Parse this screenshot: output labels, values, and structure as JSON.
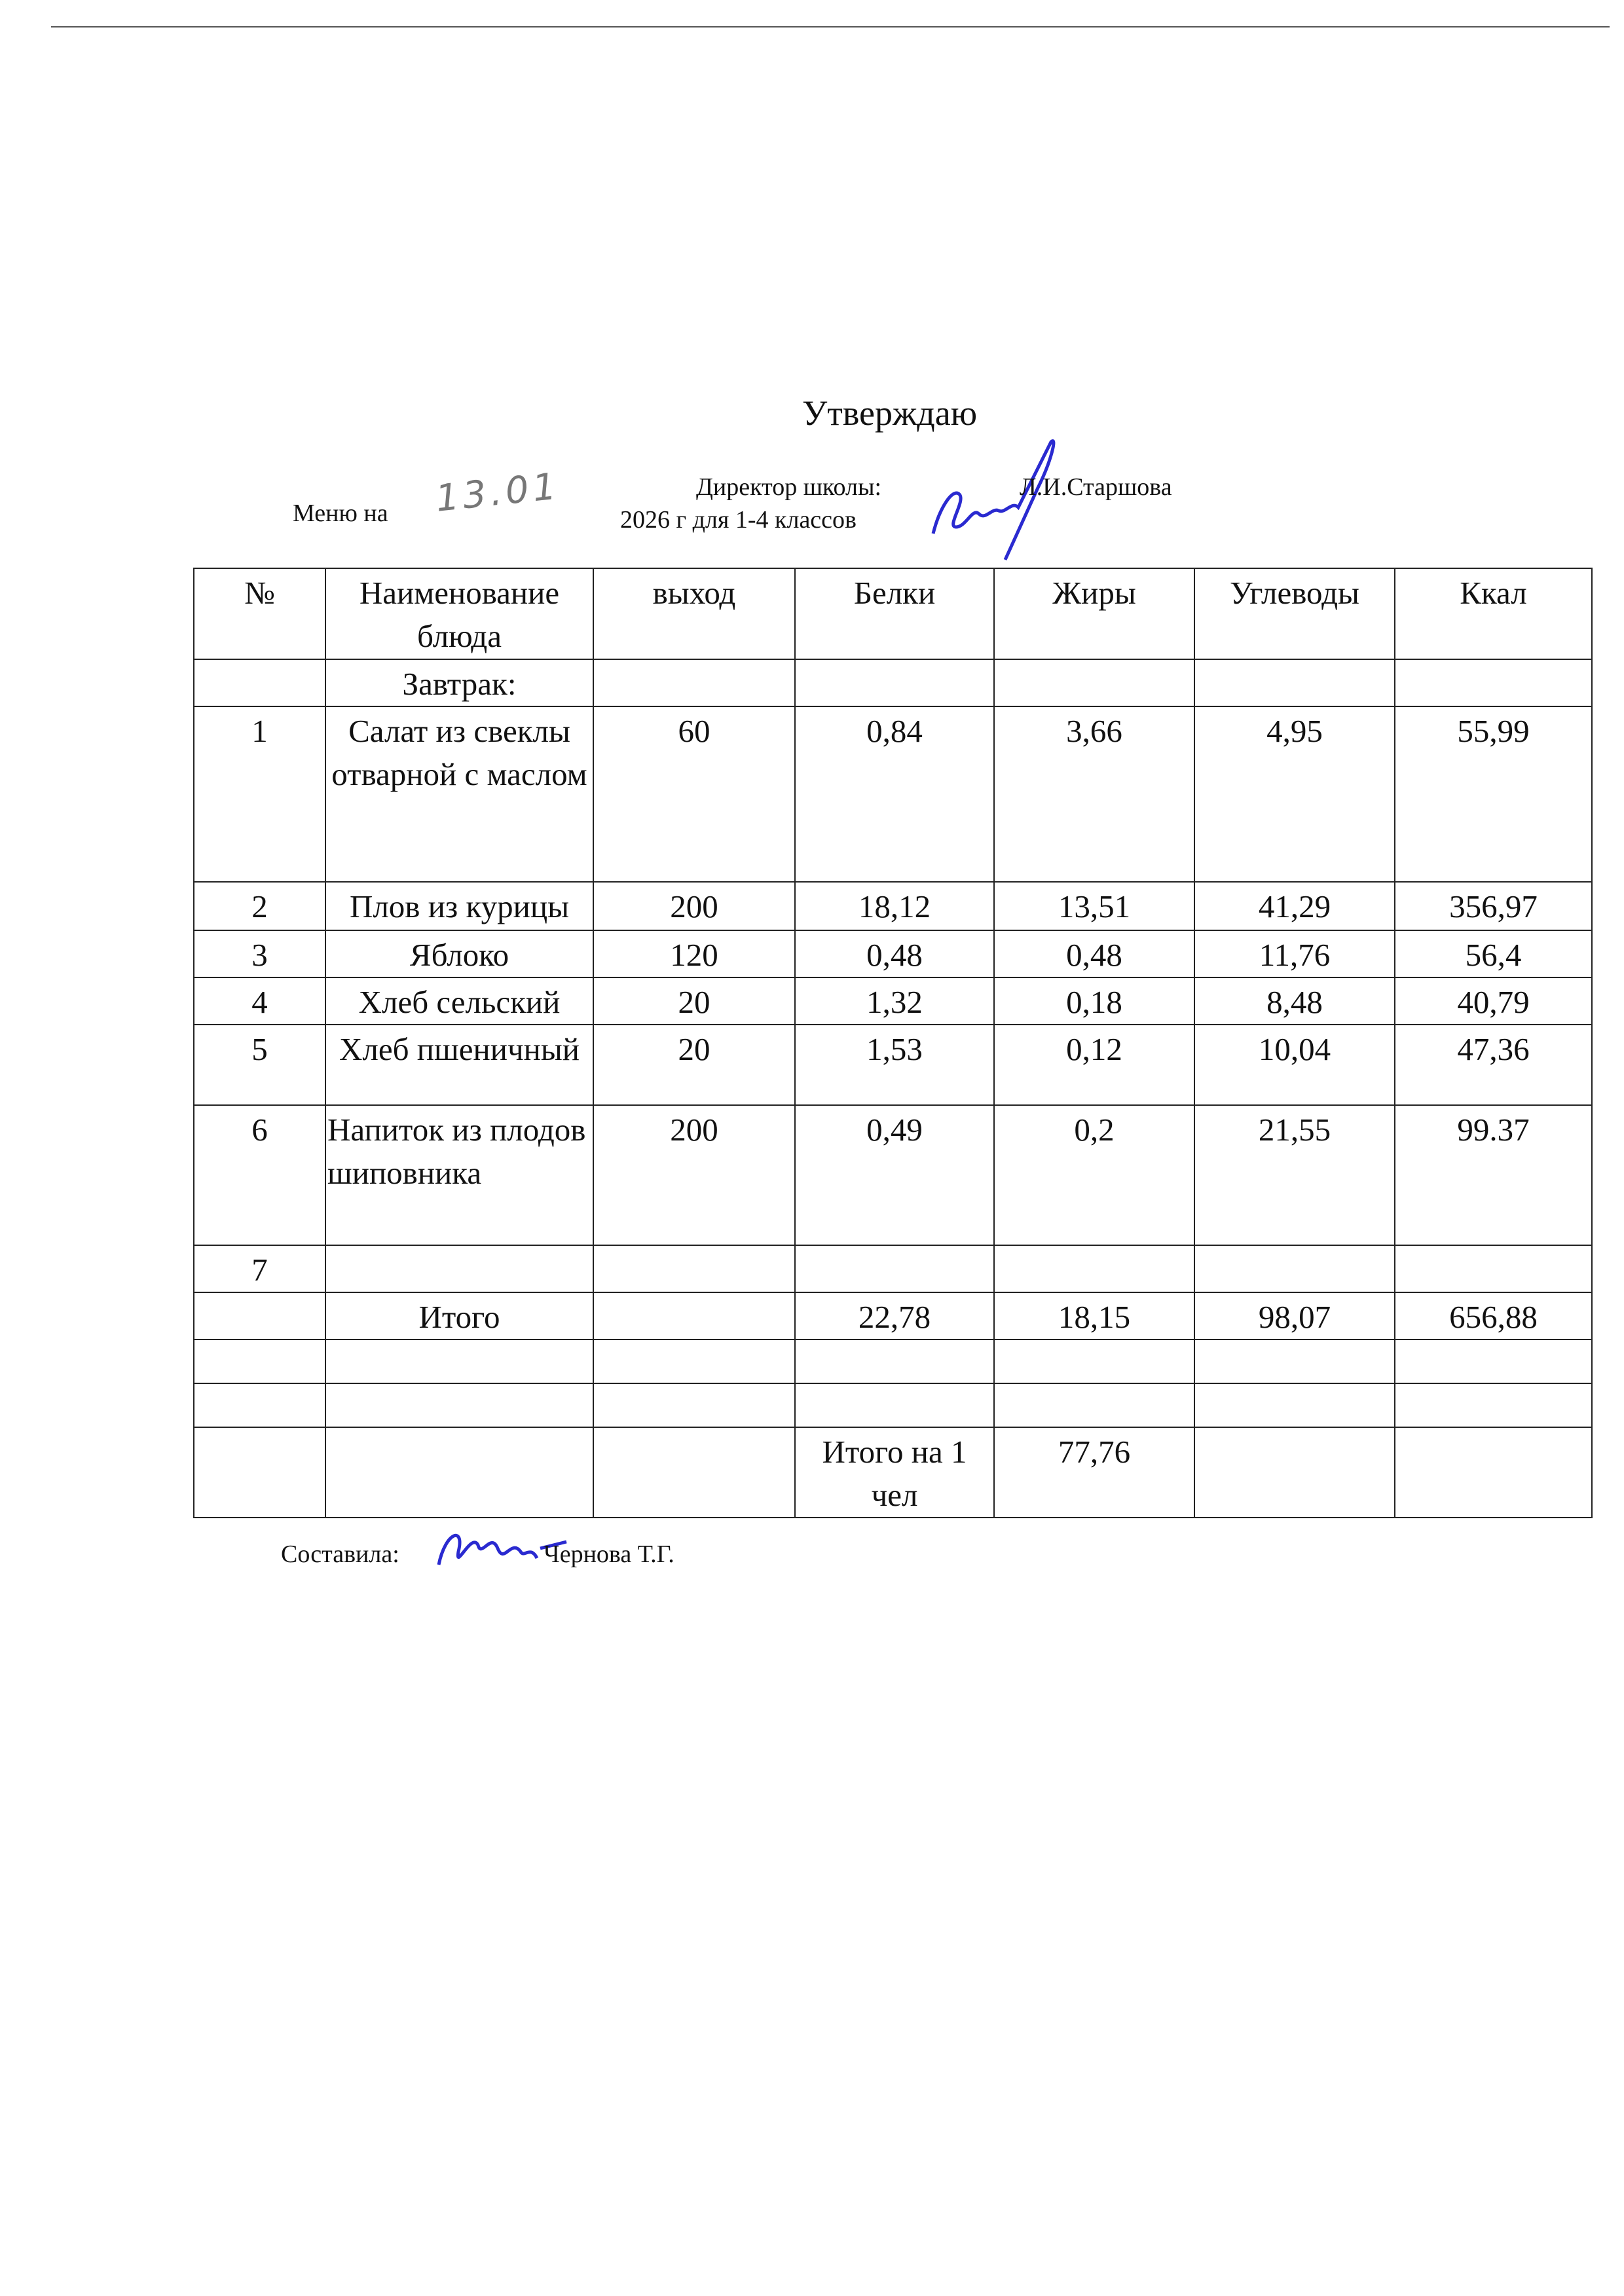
{
  "header": {
    "approve": "Утверждаю",
    "director_label": "Директор школы:",
    "director_name": "Л.И.Старшова",
    "menu_label": "Меню на",
    "date_handwritten": "13.01",
    "year_classes": "2026 г для 1-4 классов"
  },
  "table": {
    "columns": [
      "№",
      "Наименование блюда",
      "выход",
      "Белки",
      "Жиры",
      "Углеводы",
      "Ккал"
    ],
    "section": "Завтрак:",
    "rows": [
      [
        "1",
        "Салат из свеклы отварной с маслом",
        "60",
        "0,84",
        "3,66",
        "4,95",
        "55,99"
      ],
      [
        "2",
        "Плов из курицы",
        "200",
        "18,12",
        "13,51",
        "41,29",
        "356,97"
      ],
      [
        "3",
        "Яблоко",
        "120",
        "0,48",
        "0,48",
        "11,76",
        "56,4"
      ],
      [
        "4",
        "Хлеб сельский",
        "20",
        "1,32",
        "0,18",
        "8,48",
        "40,79"
      ],
      [
        "5",
        "Хлеб пшеничный",
        "20",
        "1,53",
        "0,12",
        "10,04",
        "47,36"
      ],
      [
        "6",
        "Напиток из плодов шиповника",
        "200",
        "0,49",
        "0,2",
        "21,55",
        "99.37"
      ],
      [
        "7",
        "",
        "",
        "",
        "",
        "",
        ""
      ]
    ],
    "total": {
      "label": "Итого",
      "proteins": "22,78",
      "fats": "18,15",
      "carbs": "98,07",
      "kcal": "656,88"
    },
    "per_person": {
      "label": "Итого на 1 чел",
      "value": "77,76"
    }
  },
  "footer": {
    "compiled_label": "Составила:",
    "compiled_name": "Чернова Т.Г."
  },
  "colors": {
    "signature_ink": "#2a2ad0"
  }
}
